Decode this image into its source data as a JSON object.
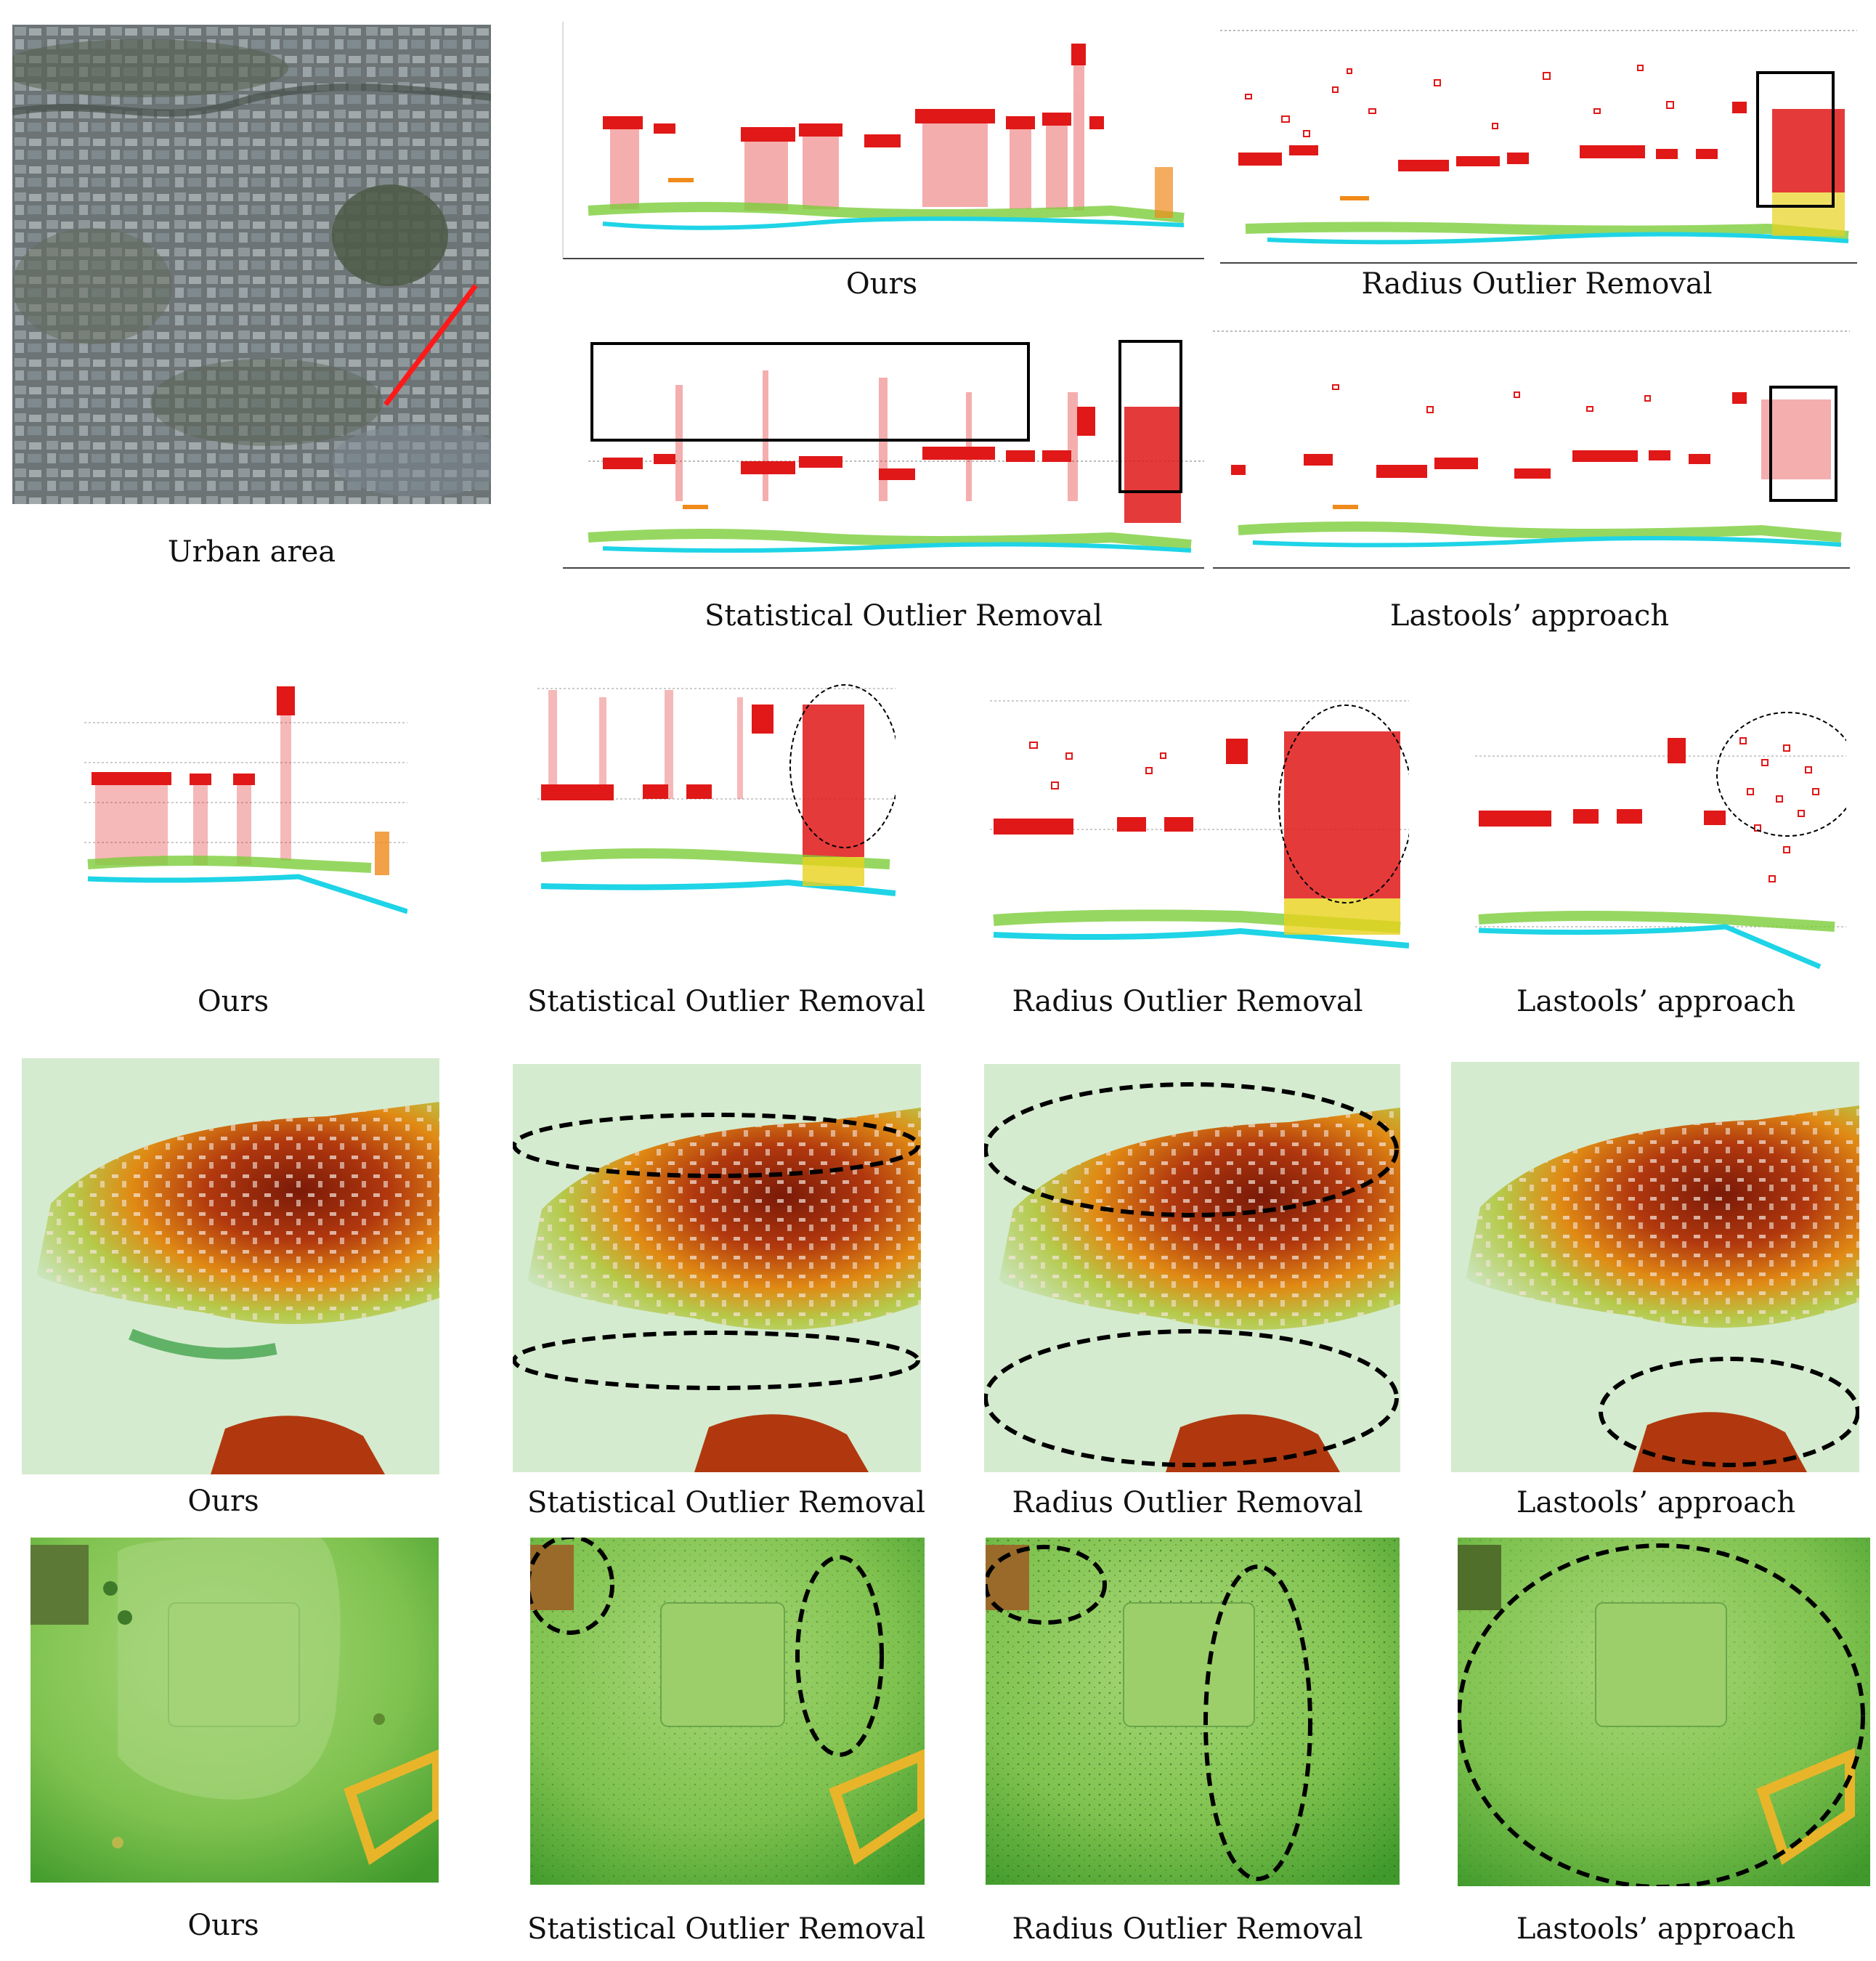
{
  "figure": {
    "row1": {
      "urban": {
        "caption": "Urban area"
      },
      "ours": {
        "caption": "Ours"
      },
      "radius": {
        "caption": "Radius Outlier Removal"
      },
      "statistical": {
        "caption": "Statistical Outlier Removal"
      },
      "lastools": {
        "caption": "Lastools’ approach"
      }
    },
    "row2": {
      "ours": {
        "caption": "Ours"
      },
      "statistical": {
        "caption": "Statistical Outlier Removal"
      },
      "radius": {
        "caption": "Radius Outlier Removal"
      },
      "lastools": {
        "caption": "Lastools’ approach"
      }
    },
    "row3": {
      "ours": {
        "caption": "Ours"
      },
      "statistical": {
        "caption": "Statistical Outlier Removal"
      },
      "radius": {
        "caption": "Radius Outlier Removal"
      },
      "lastools": {
        "caption": "Lastools’ approach"
      }
    },
    "row4": {
      "ours": {
        "caption": "Ours"
      },
      "statistical": {
        "caption": "Statistical Outlier Removal"
      },
      "radius": {
        "caption": "Radius Outlier Removal"
      },
      "lastools": {
        "caption": "Lastools’ approach"
      }
    }
  },
  "colors": {
    "roof_red": "#e01818",
    "ground_cyan": "#1ed4e6",
    "veg_green": "#7ccd3a",
    "veg_yellow": "#e8d21c",
    "veg_orange": "#f08a1a",
    "annotation": "#000000",
    "transect_line": "#ff1a1a"
  }
}
